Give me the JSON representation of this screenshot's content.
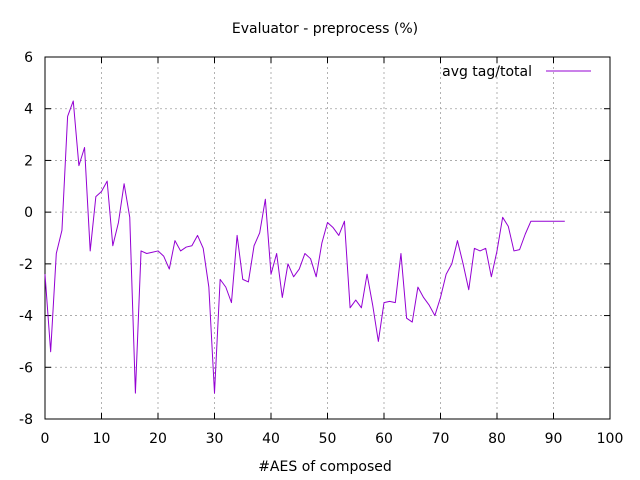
{
  "chart_data": {
    "type": "line",
    "title": "Evaluator - preprocess (%)",
    "xlabel": "#AES of composed",
    "ylabel": "",
    "xlim": [
      0,
      100
    ],
    "ylim": [
      -8,
      6
    ],
    "xticks": [
      0,
      10,
      20,
      30,
      40,
      50,
      60,
      70,
      80,
      90,
      100
    ],
    "yticks": [
      -8,
      -6,
      -4,
      -2,
      0,
      2,
      4,
      6
    ],
    "grid": true,
    "legend_position": "top-right",
    "series": [
      {
        "name": "avg tag/total",
        "color": "#9400d3",
        "x": [
          0,
          1,
          2,
          3,
          4,
          5,
          6,
          7,
          8,
          9,
          10,
          11,
          12,
          13,
          14,
          15,
          16,
          17,
          18,
          19,
          20,
          21,
          22,
          23,
          24,
          25,
          26,
          27,
          28,
          29,
          30,
          31,
          32,
          33,
          34,
          35,
          36,
          37,
          38,
          39,
          40,
          41,
          42,
          43,
          44,
          45,
          46,
          47,
          48,
          49,
          50,
          51,
          52,
          53,
          54,
          55,
          56,
          57,
          58,
          59,
          60,
          61,
          62,
          63,
          64,
          65,
          66,
          67,
          68,
          69,
          70,
          71,
          72,
          73,
          74,
          75,
          76,
          77,
          78,
          79,
          80,
          81,
          82,
          83,
          84,
          85,
          86,
          87,
          88,
          89,
          90,
          91,
          92
        ],
        "y": [
          -2.4,
          -5.4,
          -1.6,
          -0.7,
          3.7,
          4.3,
          1.8,
          2.5,
          -1.5,
          0.6,
          0.8,
          1.2,
          -1.3,
          -0.4,
          1.1,
          -0.2,
          -7.0,
          -1.5,
          -1.6,
          -1.55,
          -1.5,
          -1.7,
          -2.2,
          -1.1,
          -1.5,
          -1.35,
          -1.3,
          -0.9,
          -1.4,
          -2.9,
          -7.0,
          -2.6,
          -2.9,
          -3.5,
          -0.9,
          -2.6,
          -2.7,
          -1.3,
          -0.8,
          0.5,
          -2.4,
          -1.6,
          -3.3,
          -2.0,
          -2.5,
          -2.2,
          -1.6,
          -1.8,
          -2.5,
          -1.2,
          -0.4,
          -0.6,
          -0.9,
          -0.35,
          -3.7,
          -3.4,
          -3.7,
          -2.4,
          -3.6,
          -5.0,
          -3.5,
          -3.45,
          -3.5,
          -1.6,
          -4.1,
          -4.25,
          -2.9,
          -3.3,
          -3.6,
          -4.0,
          -3.3,
          -2.4,
          -2.0,
          -1.1,
          -2.0,
          -3.0,
          -1.4,
          -1.5,
          -1.4,
          -2.5,
          -1.5,
          -0.2,
          -0.55,
          -1.5,
          -1.45,
          -0.85,
          -0.35,
          -0.35,
          -0.35,
          -0.35,
          -0.35,
          -0.35,
          -0.35
        ]
      }
    ]
  }
}
